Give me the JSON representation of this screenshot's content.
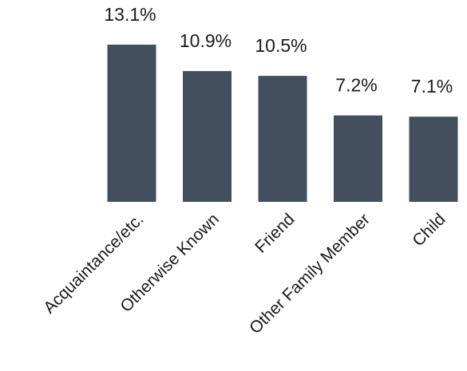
{
  "chart_data": {
    "type": "bar",
    "categories": [
      "Acquaintance/etc.",
      "Otherwise Known",
      "Friend",
      "Other Family Member",
      "Child"
    ],
    "values": [
      13.1,
      10.9,
      10.5,
      7.2,
      7.1
    ],
    "value_labels": [
      "13.1%",
      "10.9%",
      "10.5%",
      "7.2%",
      "7.1%"
    ],
    "value_unit": "%",
    "ylim": [
      0,
      14
    ],
    "grid": false,
    "bar_color": "#434f5e",
    "category_label_rotation_deg": -45
  }
}
